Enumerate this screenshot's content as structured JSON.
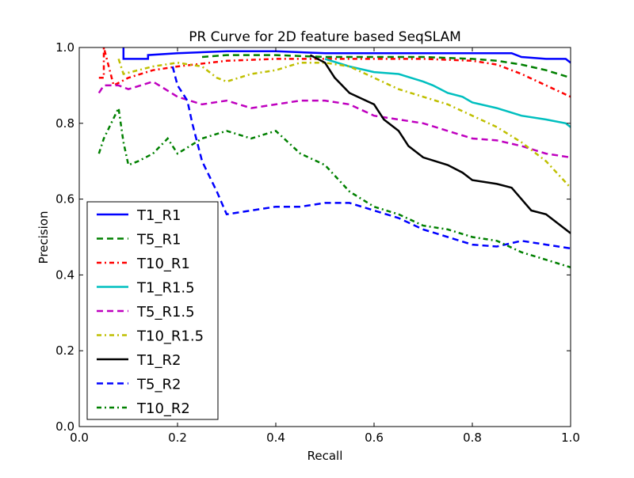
{
  "chart_data": {
    "type": "line",
    "title": "PR Curve for 2D feature based SeqSLAM",
    "xlabel": "Recall",
    "ylabel": "Precision",
    "xlim": [
      0.0,
      1.0
    ],
    "ylim": [
      0.0,
      1.0
    ],
    "xticks": [
      "0.0",
      "0.2",
      "0.4",
      "0.6",
      "0.8",
      "1.0"
    ],
    "yticks": [
      "0.0",
      "0.2",
      "0.4",
      "0.6",
      "0.8",
      "1.0"
    ],
    "grid": false,
    "legend_position": "lower-left",
    "series": [
      {
        "name": "T1_R1",
        "color": "#0000ff",
        "dash": "solid",
        "x": [
          0.09,
          0.09,
          0.14,
          0.14,
          0.2,
          0.3,
          0.4,
          0.5,
          0.6,
          0.7,
          0.8,
          0.88,
          0.9,
          0.95,
          0.99,
          1.0
        ],
        "y": [
          1.0,
          0.97,
          0.97,
          0.98,
          0.985,
          0.99,
          0.99,
          0.985,
          0.985,
          0.985,
          0.985,
          0.985,
          0.975,
          0.97,
          0.97,
          0.96
        ]
      },
      {
        "name": "T5_R1",
        "color": "#008000",
        "dash": "dashed",
        "x": [
          0.25,
          0.3,
          0.4,
          0.5,
          0.6,
          0.7,
          0.8,
          0.85,
          0.9,
          0.95,
          1.0
        ],
        "y": [
          0.975,
          0.98,
          0.98,
          0.975,
          0.975,
          0.975,
          0.97,
          0.965,
          0.955,
          0.94,
          0.92
        ]
      },
      {
        "name": "T10_R1",
        "color": "#ff0000",
        "dash": "dashdot",
        "x": [
          0.04,
          0.05,
          0.05,
          0.07,
          0.1,
          0.15,
          0.2,
          0.3,
          0.4,
          0.5,
          0.6,
          0.7,
          0.8,
          0.85,
          0.9,
          0.95,
          1.0
        ],
        "y": [
          0.92,
          0.92,
          1.0,
          0.9,
          0.92,
          0.94,
          0.95,
          0.965,
          0.97,
          0.97,
          0.97,
          0.97,
          0.965,
          0.955,
          0.93,
          0.9,
          0.87
        ]
      },
      {
        "name": "T1_R1.5",
        "color": "#00bfbf",
        "dash": "solid",
        "x": [
          0.5,
          0.55,
          0.6,
          0.65,
          0.7,
          0.72,
          0.75,
          0.78,
          0.8,
          0.85,
          0.9,
          0.95,
          0.99,
          1.0
        ],
        "y": [
          0.97,
          0.95,
          0.935,
          0.93,
          0.91,
          0.9,
          0.88,
          0.87,
          0.855,
          0.84,
          0.82,
          0.81,
          0.8,
          0.79
        ]
      },
      {
        "name": "T5_R1.5",
        "color": "#bf00bf",
        "dash": "dashed",
        "x": [
          0.04,
          0.05,
          0.08,
          0.1,
          0.15,
          0.2,
          0.25,
          0.3,
          0.35,
          0.4,
          0.45,
          0.5,
          0.55,
          0.6,
          0.65,
          0.7,
          0.75,
          0.8,
          0.85,
          0.9,
          0.95,
          1.0
        ],
        "y": [
          0.88,
          0.9,
          0.9,
          0.89,
          0.91,
          0.87,
          0.85,
          0.86,
          0.84,
          0.85,
          0.86,
          0.86,
          0.85,
          0.82,
          0.81,
          0.8,
          0.78,
          0.76,
          0.755,
          0.74,
          0.72,
          0.71
        ]
      },
      {
        "name": "T10_R1.5",
        "color": "#bfbf00",
        "dash": "dashdot",
        "x": [
          0.08,
          0.09,
          0.12,
          0.15,
          0.2,
          0.25,
          0.28,
          0.3,
          0.35,
          0.4,
          0.45,
          0.5,
          0.55,
          0.6,
          0.65,
          0.7,
          0.75,
          0.8,
          0.85,
          0.9,
          0.95,
          1.0
        ],
        "y": [
          0.97,
          0.93,
          0.94,
          0.95,
          0.96,
          0.95,
          0.92,
          0.91,
          0.93,
          0.94,
          0.96,
          0.96,
          0.95,
          0.92,
          0.89,
          0.87,
          0.85,
          0.82,
          0.79,
          0.75,
          0.7,
          0.63
        ]
      },
      {
        "name": "T1_R2",
        "color": "#000000",
        "dash": "solid",
        "x": [
          0.47,
          0.5,
          0.52,
          0.55,
          0.6,
          0.62,
          0.65,
          0.67,
          0.7,
          0.75,
          0.78,
          0.8,
          0.85,
          0.88,
          0.9,
          0.92,
          0.95,
          0.98,
          1.0
        ],
        "y": [
          0.98,
          0.96,
          0.92,
          0.88,
          0.85,
          0.81,
          0.78,
          0.74,
          0.71,
          0.69,
          0.67,
          0.65,
          0.64,
          0.63,
          0.6,
          0.57,
          0.56,
          0.53,
          0.51
        ]
      },
      {
        "name": "T5_R2",
        "color": "#0000ff",
        "dash": "dashed",
        "x": [
          0.19,
          0.2,
          0.22,
          0.23,
          0.25,
          0.28,
          0.3,
          0.35,
          0.4,
          0.45,
          0.5,
          0.55,
          0.6,
          0.65,
          0.7,
          0.75,
          0.8,
          0.85,
          0.9,
          0.95,
          1.0
        ],
        "y": [
          0.95,
          0.9,
          0.86,
          0.8,
          0.7,
          0.62,
          0.56,
          0.57,
          0.58,
          0.58,
          0.59,
          0.59,
          0.57,
          0.55,
          0.52,
          0.5,
          0.48,
          0.475,
          0.49,
          0.48,
          0.47
        ]
      },
      {
        "name": "T10_R2",
        "color": "#008000",
        "dash": "dashdot",
        "x": [
          0.04,
          0.05,
          0.08,
          0.09,
          0.1,
          0.12,
          0.15,
          0.18,
          0.2,
          0.25,
          0.3,
          0.35,
          0.4,
          0.45,
          0.5,
          0.55,
          0.6,
          0.65,
          0.7,
          0.75,
          0.8,
          0.85,
          0.9,
          0.95,
          1.0
        ],
        "y": [
          0.72,
          0.76,
          0.84,
          0.75,
          0.69,
          0.7,
          0.72,
          0.76,
          0.72,
          0.76,
          0.78,
          0.76,
          0.78,
          0.72,
          0.69,
          0.62,
          0.58,
          0.56,
          0.53,
          0.52,
          0.5,
          0.49,
          0.46,
          0.44,
          0.42
        ]
      }
    ]
  }
}
